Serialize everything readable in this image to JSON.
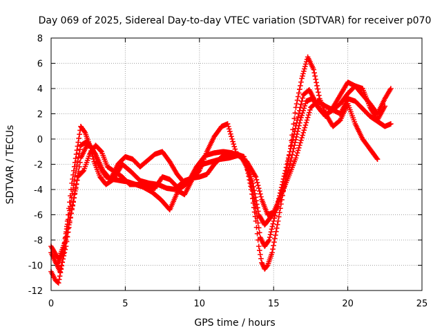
{
  "chart_data": {
    "type": "scatter",
    "title": "Day 069 of 2025, Sidereal Day-to-day VTEC variation (SDTVAR) for receiver p070",
    "xlabel": "GPS time / hours",
    "ylabel": "SDTVAR / TECUs",
    "xlim": [
      0,
      25
    ],
    "ylim": [
      -12,
      8
    ],
    "xticks": [
      0,
      5,
      10,
      15,
      20,
      25
    ],
    "yticks": [
      -12,
      -10,
      -8,
      -6,
      -4,
      -2,
      0,
      2,
      4,
      6,
      8
    ],
    "grid": true,
    "marker": "plus",
    "color": "#ff0000",
    "series": [
      {
        "x": [
          0,
          0.3,
          0.5,
          0.8,
          1.1,
          1.4,
          1.7,
          2.0,
          2.3,
          2.6,
          2.9,
          3.3,
          3.7,
          4.2,
          4.7,
          5.2,
          5.7,
          6.2,
          6.8,
          7.4,
          8.0,
          8.6,
          9.2,
          9.8,
          10.4,
          11.0,
          11.6,
          12.2,
          12.8,
          13.2,
          13.5,
          13.8,
          14.0,
          14.2,
          14.4,
          14.6,
          14.9,
          15.3,
          15.7,
          16.1,
          16.5,
          16.9,
          17.3,
          17.7,
          18.1,
          18.5,
          19.0,
          19.5,
          20.0,
          20.5,
          21.0,
          21.5,
          22.0
        ],
        "y": [
          -10.5,
          -11.2,
          -11.4,
          -9.5,
          -6.5,
          -3.5,
          -1.2,
          1.0,
          0.5,
          -0.5,
          -1.8,
          -3.0,
          -3.6,
          -3.2,
          -3.3,
          -3.4,
          -3.6,
          -3.8,
          -4.2,
          -4.8,
          -5.6,
          -4.0,
          -3.5,
          -2.2,
          -1.3,
          -1.1,
          -1.0,
          -1.1,
          -1.4,
          -2.2,
          -4.0,
          -6.5,
          -8.5,
          -9.8,
          -10.3,
          -10.0,
          -9.0,
          -6.5,
          -3.8,
          -1.0,
          2.5,
          4.8,
          6.5,
          5.5,
          3.2,
          2.0,
          1.0,
          1.5,
          2.8,
          1.2,
          0.0,
          -0.8,
          -1.6
        ]
      },
      {
        "x": [
          0,
          0.4,
          0.8,
          1.2,
          1.6,
          2.0,
          2.4,
          2.8,
          3.2,
          3.7,
          4.2,
          4.8,
          5.4,
          6.0,
          6.6,
          7.2,
          7.8,
          8.4,
          9.0,
          9.6,
          10.2,
          10.8,
          11.4,
          12.0,
          12.6,
          13.0,
          13.4,
          13.8,
          14.1,
          14.4,
          14.7,
          15.0,
          15.4,
          15.8,
          16.2,
          16.6,
          17.0,
          17.4,
          17.8,
          18.2,
          18.6,
          19.0,
          19.5,
          20.0,
          20.5,
          21.0,
          21.5,
          22.0,
          22.5
        ],
        "y": [
          -9.0,
          -10.0,
          -9.0,
          -6.0,
          -3.0,
          -0.5,
          -0.2,
          -0.8,
          -2.0,
          -3.0,
          -3.2,
          -2.0,
          -2.6,
          -3.3,
          -3.5,
          -3.6,
          -3.9,
          -4.0,
          -4.4,
          -3.0,
          -2.0,
          -1.8,
          -1.6,
          -1.5,
          -1.3,
          -1.6,
          -3.0,
          -5.5,
          -7.8,
          -8.5,
          -8.0,
          -6.5,
          -4.5,
          -2.5,
          -0.5,
          1.5,
          3.5,
          3.9,
          3.0,
          2.2,
          2.0,
          2.3,
          2.8,
          3.6,
          4.2,
          4.0,
          2.5,
          1.5,
          2.6
        ]
      },
      {
        "x": [
          0,
          0.5,
          1.0,
          1.5,
          2.0,
          2.5,
          3.0,
          3.5,
          4.0,
          4.5,
          5.0,
          5.5,
          6.0,
          7.0,
          7.5,
          8.0,
          8.5,
          9.0,
          9.5,
          10.0,
          10.5,
          11.0,
          11.5,
          11.9,
          12.5,
          13.0,
          13.6,
          14.0,
          14.4,
          14.8,
          15.2,
          15.6,
          16.0,
          16.4,
          16.8,
          17.2,
          17.6,
          18.0,
          18.5,
          19.0,
          19.5,
          20.0,
          20.5,
          21.0,
          21.5,
          22.0,
          22.5,
          22.9
        ],
        "y": [
          -8.5,
          -9.5,
          -8.0,
          -5.0,
          -1.5,
          -0.3,
          -1.2,
          -2.5,
          -3.2,
          -2.0,
          -1.4,
          -1.6,
          -2.2,
          -1.2,
          -1.0,
          -1.8,
          -2.8,
          -3.5,
          -3.2,
          -2.5,
          -1.0,
          0.2,
          1.0,
          1.2,
          -1.2,
          -1.4,
          -3.5,
          -6.0,
          -6.8,
          -6.2,
          -5.5,
          -4.0,
          -2.5,
          -0.5,
          1.5,
          3.0,
          3.2,
          2.5,
          1.8,
          2.5,
          3.5,
          4.5,
          4.2,
          3.5,
          2.8,
          2.0,
          3.2,
          4.0
        ]
      },
      {
        "x": [
          0.2,
          0.6,
          1.0,
          1.4,
          1.8,
          2.2,
          2.6,
          3.0,
          3.4,
          3.8,
          4.3,
          4.8,
          5.3,
          6.0,
          7.0,
          7.5,
          8.0,
          8.5,
          9.0,
          9.5,
          10.0,
          10.5,
          11.0,
          11.5,
          12.0,
          12.6,
          13.2,
          13.8,
          14.2,
          14.6,
          15.0,
          15.5,
          16.0,
          16.5,
          17.0,
          17.5,
          18.0,
          18.5,
          19.5,
          20.0,
          20.5,
          21.0,
          21.5,
          22.0,
          22.5,
          22.9
        ],
        "y": [
          -9.5,
          -10.5,
          -8.5,
          -5.5,
          -3.0,
          -2.5,
          -1.2,
          -0.5,
          -1.0,
          -2.2,
          -2.6,
          -3.0,
          -3.6,
          -3.6,
          -3.9,
          -3.0,
          -3.2,
          -3.8,
          -3.3,
          -3.1,
          -3.0,
          -2.8,
          -2.0,
          -1.4,
          -1.3,
          -1.2,
          -1.8,
          -3.0,
          -4.8,
          -6.0,
          -5.8,
          -4.5,
          -3.0,
          -1.5,
          0.5,
          2.5,
          3.0,
          2.6,
          2.0,
          3.2,
          3.0,
          2.4,
          1.8,
          1.4,
          1.0,
          1.2
        ]
      }
    ]
  }
}
